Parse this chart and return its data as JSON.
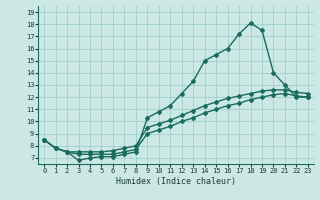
{
  "xlabel": "Humidex (Indice chaleur)",
  "bg_color": "#cce8e5",
  "grid_color": "#9ecfcb",
  "line_color": "#1a6b60",
  "xlim": [
    -0.5,
    23.5
  ],
  "ylim": [
    6.5,
    19.5
  ],
  "xticks": [
    0,
    1,
    2,
    3,
    4,
    5,
    6,
    7,
    8,
    9,
    10,
    11,
    12,
    13,
    14,
    15,
    16,
    17,
    18,
    19,
    20,
    21,
    22,
    23
  ],
  "yticks": [
    7,
    8,
    9,
    10,
    11,
    12,
    13,
    14,
    15,
    16,
    17,
    18,
    19
  ],
  "curve1_x": [
    0,
    1,
    2,
    3,
    4,
    5,
    6,
    7,
    8,
    9,
    10,
    11,
    12,
    13,
    14,
    15,
    16,
    17,
    18,
    19,
    20,
    21,
    22,
    23
  ],
  "curve1_y": [
    8.5,
    7.8,
    7.5,
    6.8,
    7.0,
    7.1,
    7.1,
    7.3,
    7.5,
    10.3,
    10.8,
    11.3,
    12.3,
    13.3,
    15.0,
    15.5,
    16.0,
    17.2,
    18.1,
    17.5,
    14.0,
    13.0,
    12.0,
    12.0
  ],
  "curve2_x": [
    0,
    1,
    2,
    3,
    4,
    5,
    6,
    7,
    8,
    9,
    10,
    11,
    12,
    13,
    14,
    15,
    16,
    17,
    18,
    19,
    20,
    21,
    22,
    23
  ],
  "curve2_y": [
    8.5,
    7.8,
    7.5,
    7.5,
    7.5,
    7.5,
    7.6,
    7.8,
    8.0,
    9.5,
    9.8,
    10.1,
    10.5,
    10.9,
    11.3,
    11.6,
    11.9,
    12.1,
    12.3,
    12.5,
    12.6,
    12.6,
    12.4,
    12.3
  ],
  "curve3_x": [
    0,
    1,
    2,
    3,
    4,
    5,
    6,
    7,
    8,
    9,
    10,
    11,
    12,
    13,
    14,
    15,
    16,
    17,
    18,
    19,
    20,
    21,
    22,
    23
  ],
  "curve3_y": [
    8.5,
    7.8,
    7.5,
    7.3,
    7.3,
    7.3,
    7.3,
    7.5,
    7.7,
    9.0,
    9.3,
    9.6,
    10.0,
    10.3,
    10.7,
    11.0,
    11.3,
    11.5,
    11.8,
    12.0,
    12.2,
    12.3,
    12.1,
    12.0
  ],
  "marker": "D",
  "markersize": 2.0,
  "linewidth": 1.0
}
